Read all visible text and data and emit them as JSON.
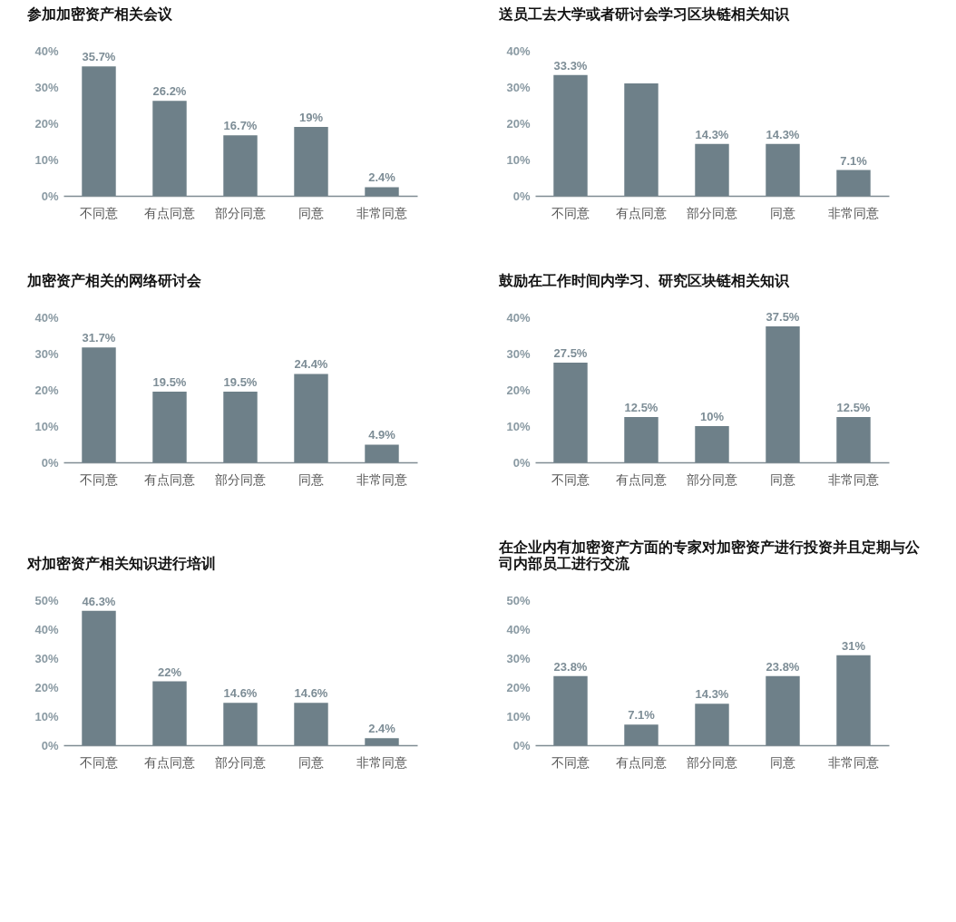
{
  "chart_data": [
    {
      "type": "bar",
      "title": "参加加密资产相关会议",
      "categories": [
        "不同意",
        "有点同意",
        "部分同意",
        "同意",
        "非常同意"
      ],
      "values": [
        35.7,
        26.2,
        16.7,
        19,
        2.4
      ],
      "value_labels": [
        "35.7%",
        "26.2%",
        "16.7%",
        "19%",
        "2.4%"
      ],
      "color": "#6e8089",
      "ylim": [
        0,
        40
      ],
      "yticks": [
        {
          "value": 0,
          "label": "0%"
        },
        {
          "value": 10,
          "label": "10%"
        },
        {
          "value": 20,
          "label": "20%"
        },
        {
          "value": 30,
          "label": "30%"
        },
        {
          "value": 40,
          "label": "40%"
        }
      ]
    },
    {
      "type": "bar",
      "title": "送员工去大学或者研讨会学习区块链相关知识",
      "categories": [
        "不同意",
        "有点同意",
        "部分同意",
        "同意",
        "非常同意"
      ],
      "values": [
        33.3,
        31,
        14.3,
        14.3,
        7.1
      ],
      "value_labels": [
        "33.3%",
        null,
        "14.3%",
        "14.3%",
        "7.1%"
      ],
      "color": "#6e8089",
      "ylim": [
        0,
        40
      ],
      "yticks": [
        {
          "value": 0,
          "label": "0%"
        },
        {
          "value": 10,
          "label": "10%"
        },
        {
          "value": 20,
          "label": "20%"
        },
        {
          "value": 30,
          "label": "30%"
        },
        {
          "value": 40,
          "label": "40%"
        }
      ]
    },
    {
      "type": "bar",
      "title": "加密资产相关的网络研讨会",
      "categories": [
        "不同意",
        "有点同意",
        "部分同意",
        "同意",
        "非常同意"
      ],
      "values": [
        31.7,
        19.5,
        19.5,
        24.4,
        4.9
      ],
      "value_labels": [
        "31.7%",
        "19.5%",
        "19.5%",
        "24.4%",
        "4.9%"
      ],
      "color": "#6e8089",
      "ylim": [
        0,
        40
      ],
      "yticks": [
        {
          "value": 0,
          "label": "0%"
        },
        {
          "value": 10,
          "label": "10%"
        },
        {
          "value": 20,
          "label": "20%"
        },
        {
          "value": 30,
          "label": "30%"
        },
        {
          "value": 40,
          "label": "40%"
        }
      ]
    },
    {
      "type": "bar",
      "title": "鼓励在工作时间内学习、研究区块链相关知识",
      "categories": [
        "不同意",
        "有点同意",
        "部分同意",
        "同意",
        "非常同意"
      ],
      "values": [
        27.5,
        12.5,
        10,
        37.5,
        12.5
      ],
      "value_labels": [
        "27.5%",
        "12.5%",
        "10%",
        "37.5%",
        "12.5%"
      ],
      "color": "#6e8089",
      "ylim": [
        0,
        40
      ],
      "yticks": [
        {
          "value": 0,
          "label": "0%"
        },
        {
          "value": 10,
          "label": "10%"
        },
        {
          "value": 20,
          "label": "20%"
        },
        {
          "value": 30,
          "label": "30%"
        },
        {
          "value": 40,
          "label": "40%"
        }
      ]
    },
    {
      "type": "bar",
      "title": "对加密资产相关知识进行培训",
      "categories": [
        "不同意",
        "有点同意",
        "部分同意",
        "同意",
        "非常同意"
      ],
      "values": [
        46.3,
        22,
        14.6,
        14.6,
        2.4
      ],
      "value_labels": [
        "46.3%",
        "22%",
        "14.6%",
        "14.6%",
        "2.4%"
      ],
      "color": "#6e8089",
      "ylim": [
        0,
        50
      ],
      "yticks": [
        {
          "value": 0,
          "label": "0%"
        },
        {
          "value": 10,
          "label": "10%"
        },
        {
          "value": 20,
          "label": "20%"
        },
        {
          "value": 30,
          "label": "30%"
        },
        {
          "value": 40,
          "label": "40%"
        },
        {
          "value": 50,
          "label": "50%"
        }
      ]
    },
    {
      "type": "bar",
      "title": "在企业内有加密资产方面的专家对加密资产进行投资并且定期与公司内部员工进行交流",
      "categories": [
        "不同意",
        "有点同意",
        "部分同意",
        "同意",
        "非常同意"
      ],
      "values": [
        23.8,
        7.1,
        14.3,
        23.8,
        31
      ],
      "value_labels": [
        "23.8%",
        "7.1%",
        "14.3%",
        "23.8%",
        "31%"
      ],
      "color": "#6e8089",
      "ylim": [
        0,
        50
      ],
      "yticks": [
        {
          "value": 0,
          "label": "0%"
        },
        {
          "value": 10,
          "label": "10%"
        },
        {
          "value": 20,
          "label": "20%"
        },
        {
          "value": 30,
          "label": "30%"
        },
        {
          "value": 40,
          "label": "40%"
        },
        {
          "value": 50,
          "label": "50%"
        }
      ]
    }
  ]
}
